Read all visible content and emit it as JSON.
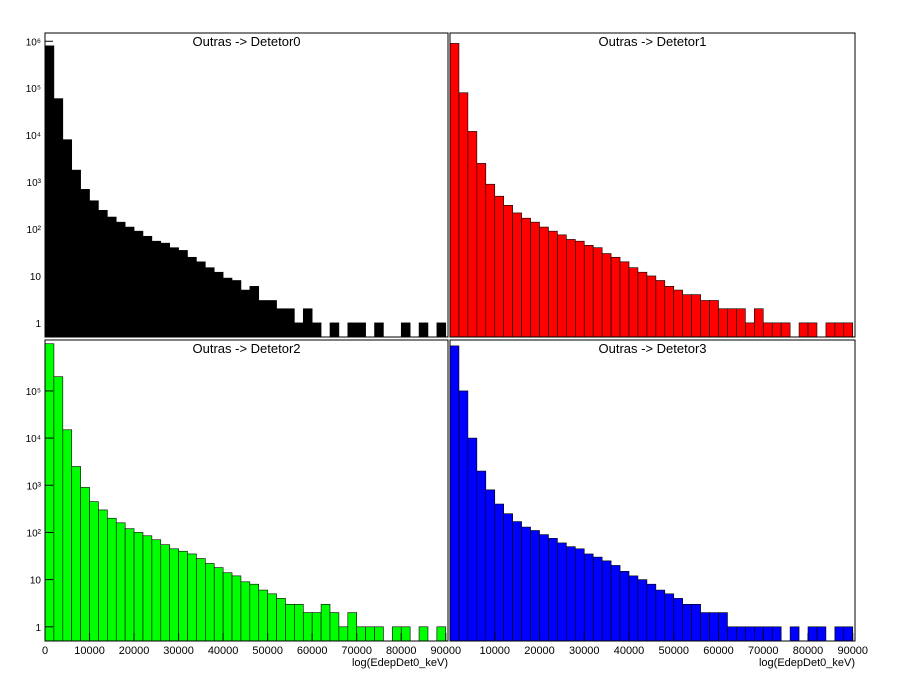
{
  "chart_data": [
    {
      "type": "histogram",
      "title": "Outras -> Detetor0",
      "color": "#000000",
      "log_y": true,
      "bins": [
        0,
        2000,
        4000,
        6000,
        8000,
        10000,
        12000,
        14000,
        16000,
        18000,
        20000,
        22000,
        24000,
        26000,
        28000,
        30000,
        32000,
        34000,
        36000,
        38000,
        40000,
        42000,
        44000,
        46000,
        48000,
        50000,
        52000,
        54000,
        56000,
        58000,
        60000,
        62000,
        64000,
        66000,
        68000,
        70000,
        72000,
        74000,
        76000,
        78000,
        80000,
        82000,
        84000,
        86000,
        88000,
        90000
      ],
      "values": [
        800000,
        60000,
        8000,
        1800,
        700,
        400,
        250,
        180,
        140,
        110,
        90,
        70,
        55,
        50,
        40,
        35,
        25,
        20,
        15,
        12,
        9,
        8,
        5,
        6,
        3,
        3,
        2,
        2,
        1,
        2,
        1,
        0,
        1,
        0,
        1,
        1,
        0,
        1,
        0,
        0,
        1,
        0,
        1,
        0,
        1
      ],
      "xlim": [
        0,
        90500
      ],
      "ylim": [
        0.5,
        1500000
      ],
      "yticks": [
        1,
        10,
        {
          "value": 100,
          "label": "10²"
        },
        {
          "value": 1000,
          "label": "10³"
        },
        {
          "value": 10000,
          "label": "10⁴"
        },
        {
          "value": 100000,
          "label": "10⁵"
        },
        {
          "value": 1000000,
          "label": "10⁶"
        }
      ]
    },
    {
      "type": "histogram",
      "title": "Outras -> Detetor1",
      "color": "#ff0000",
      "log_y": true,
      "bins": [
        0,
        2000,
        4000,
        6000,
        8000,
        10000,
        12000,
        14000,
        16000,
        18000,
        20000,
        22000,
        24000,
        26000,
        28000,
        30000,
        32000,
        34000,
        36000,
        38000,
        40000,
        42000,
        44000,
        46000,
        48000,
        50000,
        52000,
        54000,
        56000,
        58000,
        60000,
        62000,
        64000,
        66000,
        68000,
        70000,
        72000,
        74000,
        76000,
        78000,
        80000,
        82000,
        84000,
        86000,
        88000,
        90000
      ],
      "values": [
        900000,
        80000,
        12000,
        2500,
        900,
        500,
        320,
        220,
        170,
        140,
        110,
        90,
        75,
        60,
        55,
        45,
        40,
        30,
        25,
        20,
        15,
        12,
        10,
        8,
        6,
        5,
        4,
        4,
        3,
        3,
        2,
        2,
        2,
        1,
        2,
        1,
        1,
        1,
        0,
        1,
        1,
        0,
        1,
        1,
        1
      ],
      "xlim": [
        0,
        90500
      ],
      "ylim": [
        0.5,
        1500000
      ]
    },
    {
      "type": "histogram",
      "title": "Outras -> Detetor2",
      "color": "#00ff00",
      "log_y": true,
      "xlabel": "log(EdepDet0_keV)",
      "bins": [
        0,
        2000,
        4000,
        6000,
        8000,
        10000,
        12000,
        14000,
        16000,
        18000,
        20000,
        22000,
        24000,
        26000,
        28000,
        30000,
        32000,
        34000,
        36000,
        38000,
        40000,
        42000,
        44000,
        46000,
        48000,
        50000,
        52000,
        54000,
        56000,
        58000,
        60000,
        62000,
        64000,
        66000,
        68000,
        70000,
        72000,
        74000,
        76000,
        78000,
        80000,
        82000,
        84000,
        86000,
        88000,
        90000
      ],
      "values": [
        1000000,
        200000,
        15000,
        2500,
        900,
        450,
        300,
        200,
        160,
        120,
        100,
        85,
        70,
        55,
        45,
        40,
        35,
        28,
        22,
        18,
        14,
        12,
        9,
        8,
        6,
        5,
        4,
        3,
        3,
        2,
        2,
        3,
        2,
        1,
        2,
        1,
        1,
        1,
        0,
        1,
        1,
        0,
        1,
        0,
        1
      ],
      "xlim": [
        0,
        90500
      ],
      "ylim": [
        0.5,
        1200000
      ],
      "xticks": [
        0,
        10000,
        20000,
        30000,
        40000,
        50000,
        60000,
        70000,
        80000,
        90000
      ],
      "yticks": [
        1,
        10,
        {
          "value": 100,
          "label": "10²"
        },
        {
          "value": 1000,
          "label": "10³"
        },
        {
          "value": 10000,
          "label": "10⁴"
        },
        {
          "value": 100000,
          "label": "10⁵"
        }
      ]
    },
    {
      "type": "histogram",
      "title": "Outras -> Detetor3",
      "color": "#0000ff",
      "log_y": true,
      "xlabel": "log(EdepDet0_keV)",
      "bins": [
        0,
        2000,
        4000,
        6000,
        8000,
        10000,
        12000,
        14000,
        16000,
        18000,
        20000,
        22000,
        24000,
        26000,
        28000,
        30000,
        32000,
        34000,
        36000,
        38000,
        40000,
        42000,
        44000,
        46000,
        48000,
        50000,
        52000,
        54000,
        56000,
        58000,
        60000,
        62000,
        64000,
        66000,
        68000,
        70000,
        72000,
        74000,
        76000,
        78000,
        80000,
        82000,
        84000,
        86000,
        88000,
        90000
      ],
      "values": [
        900000,
        100000,
        10000,
        2000,
        800,
        400,
        250,
        170,
        130,
        110,
        90,
        75,
        60,
        50,
        45,
        35,
        30,
        25,
        20,
        15,
        12,
        10,
        8,
        6,
        5,
        4,
        3,
        3,
        2,
        2,
        2,
        1,
        1,
        1,
        1,
        1,
        1,
        0,
        1,
        0,
        1,
        1,
        0,
        1,
        1
      ],
      "xlim": [
        0,
        90500
      ],
      "ylim": [
        0.5,
        1200000
      ],
      "xticks": [
        10000,
        20000,
        30000,
        40000,
        50000,
        60000,
        70000,
        80000,
        90000
      ]
    }
  ]
}
